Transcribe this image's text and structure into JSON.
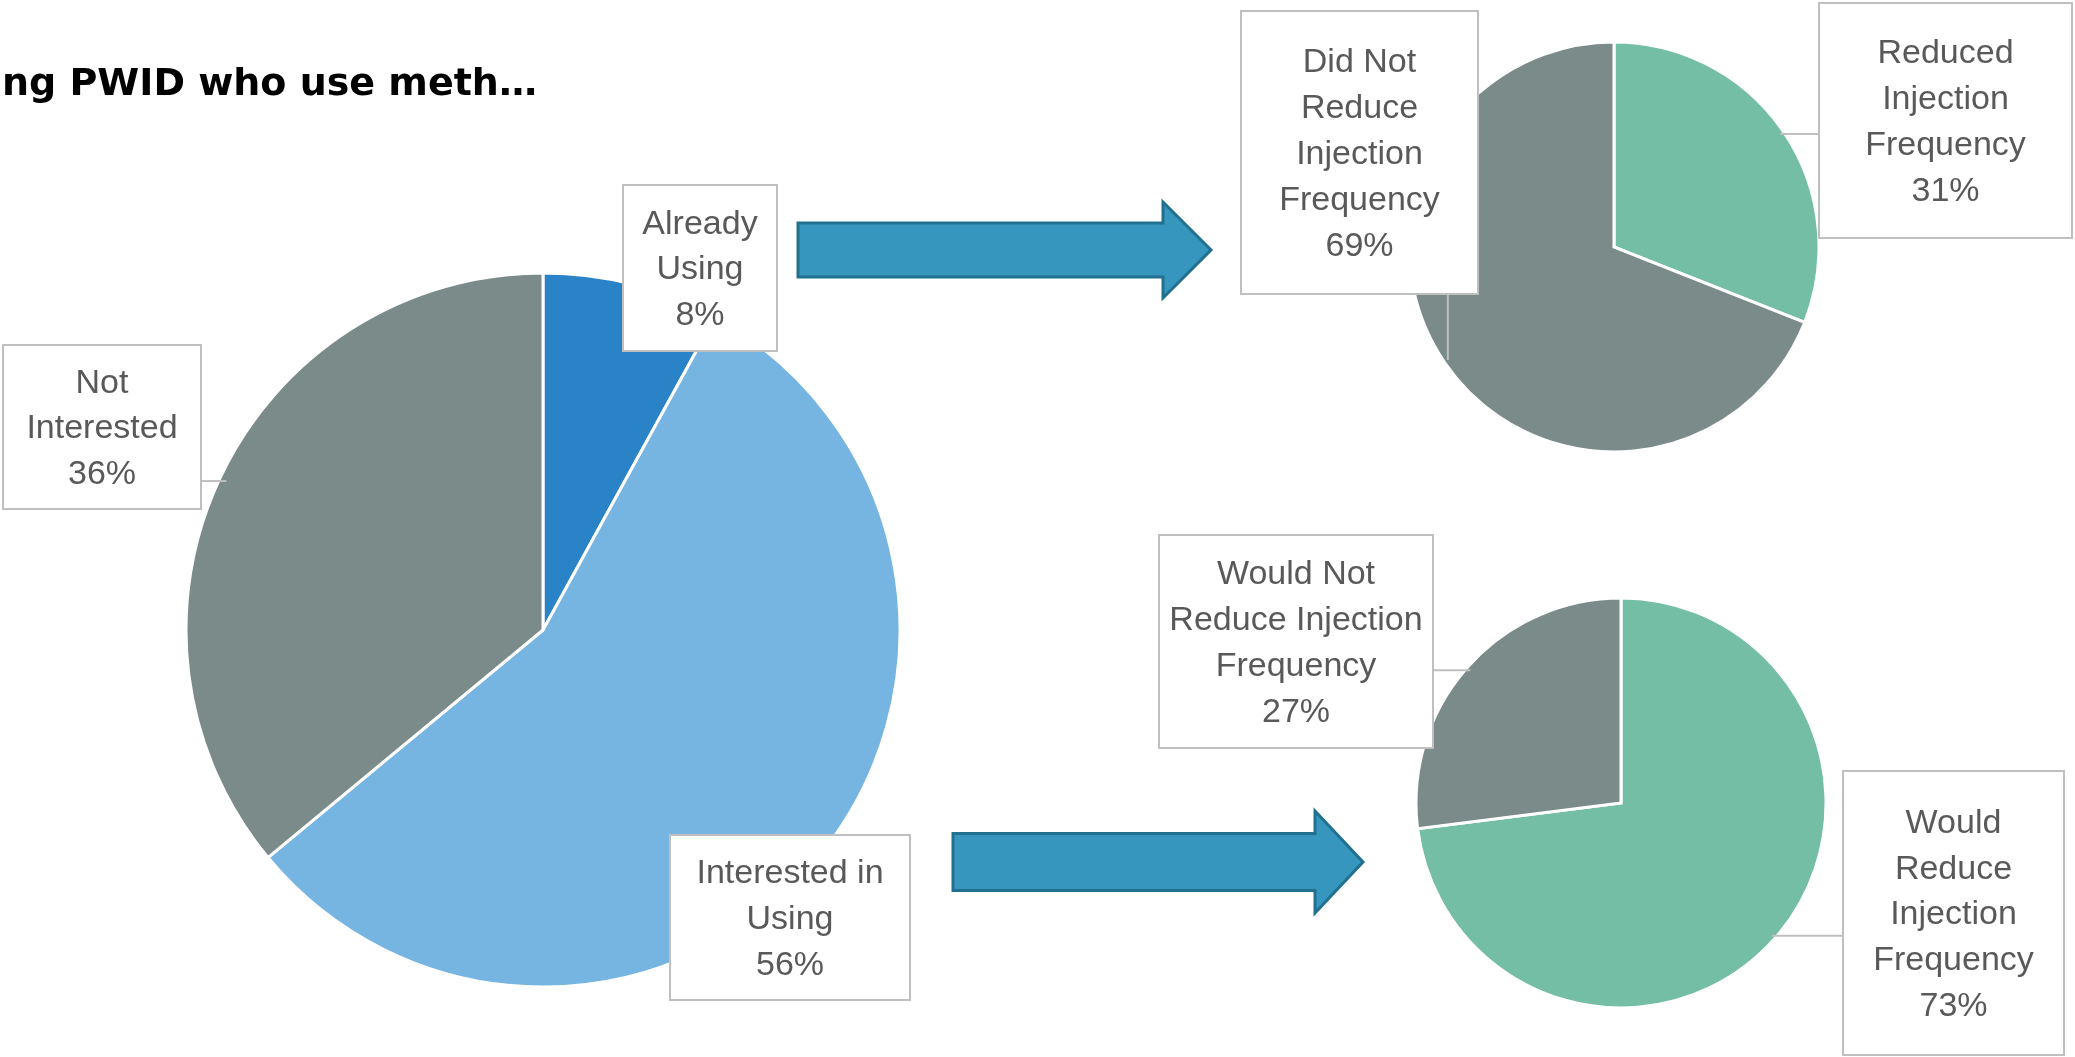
{
  "chart_data": [
    {
      "type": "pie",
      "title": "ng PWID who use meth…",
      "categories": [
        "Already Using",
        "Interested in Using",
        "Not Interested"
      ],
      "values": [
        8,
        56,
        36
      ],
      "value_labels": [
        "8%",
        "56%",
        "36%"
      ],
      "colors": [
        "#2a83c6",
        "#76b4e2",
        "#7b8b8a"
      ]
    },
    {
      "type": "pie",
      "categories": [
        "Reduced Injection Frequency",
        "Did Not Reduce Injection Frequency"
      ],
      "values": [
        31,
        69
      ],
      "value_labels": [
        "31%",
        "69%"
      ],
      "colors": [
        "#75bea6",
        "#7b8b8a"
      ]
    },
    {
      "type": "pie",
      "categories": [
        "Would Reduce Injection Frequency",
        "Would Not Reduce Injection Frequency"
      ],
      "values": [
        73,
        27
      ],
      "value_labels": [
        "73%",
        "27%"
      ],
      "colors": [
        "#75bea6",
        "#7b8b8a"
      ]
    }
  ]
}
